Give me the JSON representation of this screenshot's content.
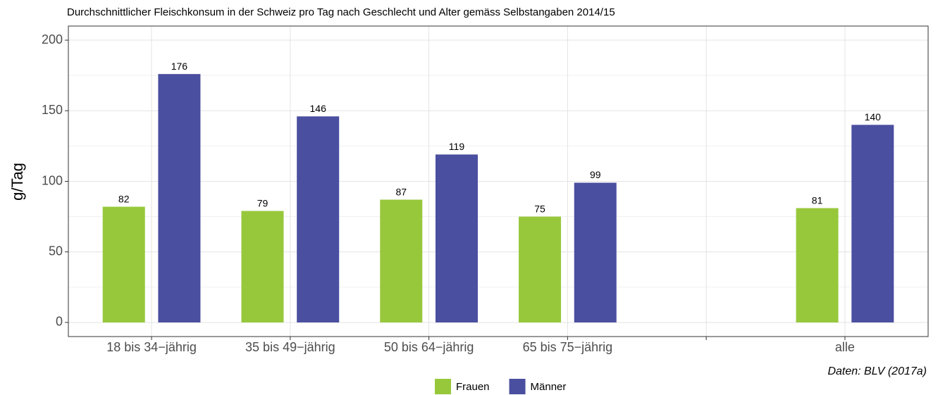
{
  "chart_data": {
    "type": "bar",
    "title": "Durchschnittlicher Fleischkonsum in der Schweiz pro Tag nach Geschlecht und Alter gemäss Selbstangaben 2014/15",
    "ylabel": "g/Tag",
    "caption": "Daten: BLV (2017a)",
    "categories": [
      "18 bis 34−jährig",
      "35 bis 49−jährig",
      "50 bis 64−jährig",
      "65 bis 75−jährig",
      null,
      "alle"
    ],
    "series": [
      {
        "name": "Frauen",
        "color": "#97c83c",
        "values": [
          82,
          79,
          87,
          75,
          null,
          81
        ]
      },
      {
        "name": "Männer",
        "color": "#4b4f9f",
        "values": [
          176,
          146,
          119,
          99,
          null,
          140
        ]
      }
    ],
    "ylim": [
      -10,
      210
    ],
    "yticks": [
      0,
      50,
      100,
      150,
      200
    ],
    "grid": true,
    "legend": "bottom"
  }
}
